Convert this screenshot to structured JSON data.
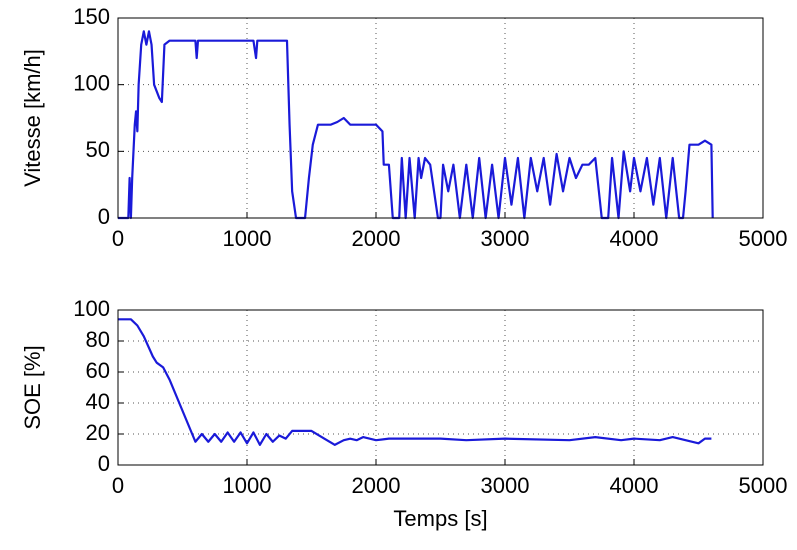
{
  "chart_data": [
    {
      "type": "line",
      "ylabel": "Vitesse [km/h]",
      "x": [
        0,
        80,
        90,
        100,
        110,
        130,
        140,
        150,
        160,
        180,
        200,
        220,
        240,
        260,
        280,
        300,
        320,
        340,
        360,
        400,
        600,
        610,
        620,
        1050,
        1070,
        1080,
        1310,
        1330,
        1350,
        1380,
        1450,
        1480,
        1510,
        1550,
        1650,
        1700,
        1750,
        1800,
        2000,
        2050,
        2060,
        2100,
        2130,
        2180,
        2200,
        2230,
        2260,
        2300,
        2330,
        2350,
        2380,
        2420,
        2450,
        2480,
        2500,
        2520,
        2560,
        2600,
        2650,
        2700,
        2750,
        2800,
        2850,
        2900,
        2950,
        3000,
        3050,
        3100,
        3150,
        3200,
        3250,
        3300,
        3350,
        3400,
        3450,
        3500,
        3550,
        3600,
        3650,
        3700,
        3750,
        3800,
        3830,
        3880,
        3920,
        3970,
        4000,
        4050,
        4100,
        4150,
        4200,
        4250,
        4300,
        4350,
        4380,
        4400,
        4430,
        4500,
        4550,
        4600,
        4610
      ],
      "series": [
        {
          "name": "Vitesse",
          "color": "#1a1ad9",
          "values": [
            0,
            0,
            30,
            0,
            30,
            70,
            80,
            65,
            100,
            130,
            140,
            130,
            140,
            130,
            100,
            95,
            90,
            87,
            130,
            133,
            133,
            120,
            133,
            133,
            120,
            133,
            133,
            70,
            20,
            0,
            0,
            30,
            55,
            70,
            70,
            72,
            75,
            70,
            70,
            65,
            40,
            40,
            0,
            0,
            45,
            0,
            45,
            0,
            45,
            30,
            45,
            40,
            20,
            0,
            0,
            40,
            20,
            40,
            0,
            40,
            0,
            45,
            0,
            40,
            0,
            45,
            10,
            45,
            0,
            45,
            20,
            45,
            10,
            48,
            20,
            45,
            30,
            40,
            40,
            45,
            0,
            0,
            45,
            0,
            50,
            20,
            45,
            20,
            45,
            10,
            45,
            0,
            45,
            0,
            0,
            20,
            55,
            55,
            58,
            55,
            0
          ]
        }
      ],
      "xlim": [
        0,
        5000
      ],
      "xticks": [
        0,
        1000,
        2000,
        3000,
        4000,
        5000
      ],
      "ylim": [
        0,
        150
      ],
      "yticks": [
        0,
        50,
        100,
        150
      ],
      "grid": true
    },
    {
      "type": "line",
      "ylabel": "SOE [%]",
      "xlabel": "Temps [s]",
      "x": [
        0,
        100,
        150,
        200,
        270,
        300,
        350,
        400,
        600,
        650,
        700,
        750,
        800,
        850,
        900,
        950,
        1000,
        1050,
        1100,
        1150,
        1200,
        1250,
        1300,
        1350,
        1500,
        1600,
        1680,
        1750,
        1800,
        1850,
        1900,
        2000,
        2100,
        2500,
        2700,
        3000,
        3500,
        3700,
        3900,
        4000,
        4200,
        4300,
        4400,
        4500,
        4550,
        4600
      ],
      "series": [
        {
          "name": "SOE",
          "color": "#1a1ad9",
          "values": [
            94,
            94,
            90,
            83,
            70,
            66,
            63,
            55,
            15,
            20,
            15,
            20,
            15,
            21,
            15,
            21,
            14,
            21,
            13,
            20,
            15,
            19,
            17,
            22,
            22,
            17,
            13,
            16,
            17,
            16,
            18,
            16,
            17,
            17,
            16,
            17,
            16,
            18,
            16,
            17,
            16,
            18,
            16,
            14,
            17,
            17
          ]
        }
      ],
      "xlim": [
        0,
        5000
      ],
      "xticks": [
        0,
        1000,
        2000,
        3000,
        4000,
        5000
      ],
      "ylim": [
        0,
        100
      ],
      "yticks": [
        0,
        20,
        40,
        60,
        80,
        100
      ],
      "grid": true
    }
  ]
}
